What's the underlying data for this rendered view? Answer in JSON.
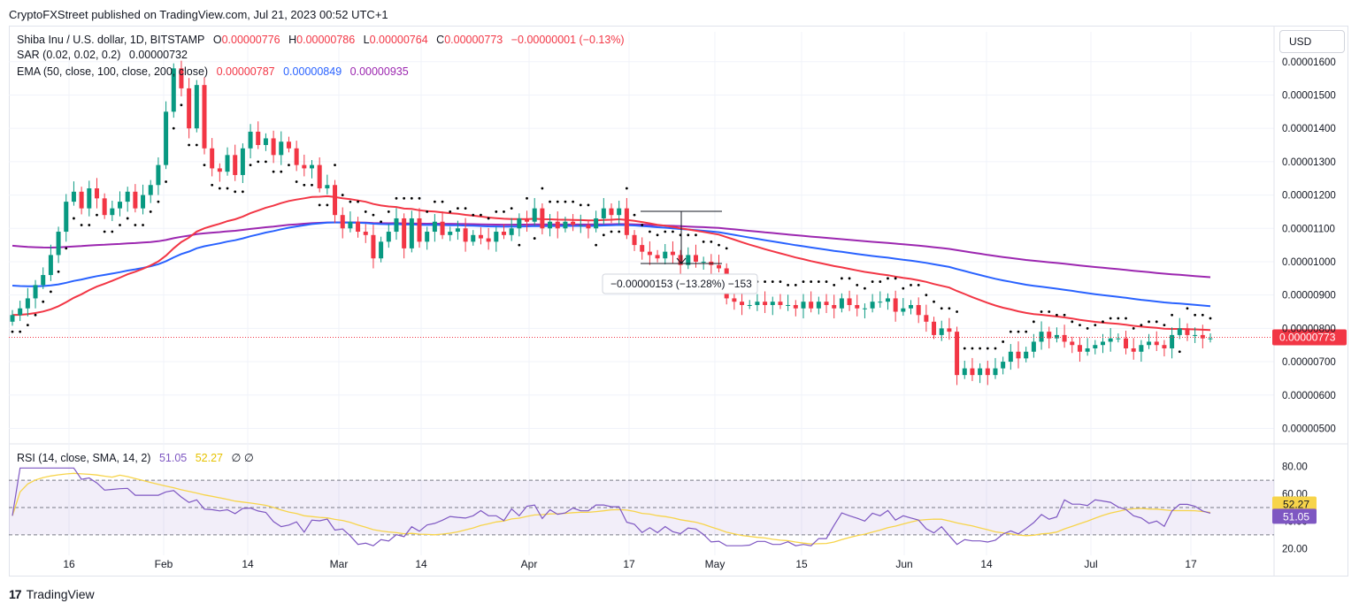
{
  "header": {
    "publisher": "CryptoFXStreet published on TradingView.com, Jul 21, 2023 00:52 UTC+1"
  },
  "currency_button": "USD",
  "legend": {
    "symbol": "Shiba Inu / U.S. dollar, 1D, BITSTAMP",
    "o_label": "O",
    "o": "0.00000776",
    "h_label": "H",
    "h": "0.00000786",
    "l_label": "L",
    "l": "0.00000764",
    "c_label": "C",
    "c": "0.00000773",
    "change": "−0.00000001 (−0.13%)",
    "sar_label": "SAR (0.02, 0.02, 0.2)",
    "sar_value": "0.00000732",
    "ema_label": "EMA (50, close, 100, close, 200, close)",
    "ema50": "0.00000787",
    "ema100": "0.00000849",
    "ema200": "0.00000935",
    "rsi_label": "RSI (14, close, SMA, 14, 2)",
    "rsi_value": "51.05",
    "rsi_sma": "52.27",
    "rsi_extra": "∅ ∅"
  },
  "price_tag": "0.00000773",
  "rsi_tags": {
    "sma": "52.27",
    "rsi": "51.05"
  },
  "measure_label": "−0.00000153 (−13.28%) −153",
  "footer": {
    "brand": "TradingView",
    "logo": "17"
  },
  "colors": {
    "up": "#089981",
    "down": "#f23645",
    "ema50": "#f23645",
    "ema100": "#2962ff",
    "ema200": "#9c27b0",
    "rsi": "#7e57c2",
    "rsi_sma": "#f7d44a"
  },
  "chart_data": {
    "type": "candlestick",
    "x_ticks": [
      "16",
      "Feb",
      "14",
      "Mar",
      "14",
      "Apr",
      "17",
      "May",
      "15",
      "Jun",
      "14",
      "Jul",
      "17"
    ],
    "y_ticks": [
      "0.00001600",
      "0.00001500",
      "0.00001400",
      "0.00001300",
      "0.00001200",
      "0.00001100",
      "0.00001000",
      "0.00000900",
      "0.00000800",
      "0.00000700",
      "0.00000600",
      "0.00000500"
    ],
    "ylim": [
      4.8e-06,
      1.61e-05
    ],
    "rsi_ticks": [
      "80.00",
      "60.00",
      "40.00",
      "20.00"
    ],
    "rsi_ylim": [
      15,
      85
    ],
    "rsi_bands": [
      70,
      50,
      30
    ],
    "closes": [
      8.4,
      8.6,
      8.9,
      9.3,
      9.6,
      10.2,
      10.9,
      11.8,
      12.1,
      11.6,
      12.2,
      11.9,
      11.4,
      11.6,
      11.8,
      12.1,
      11.6,
      12.0,
      12.3,
      12.9,
      14.5,
      15.8,
      15.2,
      14.0,
      15.3,
      13.4,
      12.8,
      12.7,
      13.2,
      12.6,
      13.4,
      13.9,
      13.5,
      13.7,
      13.2,
      13.6,
      13.4,
      12.9,
      12.8,
      12.9,
      12.2,
      12.3,
      11.4,
      11.0,
      11.2,
      10.9,
      10.8,
      10.1,
      10.6,
      10.9,
      11.3,
      10.4,
      11.3,
      10.6,
      10.9,
      11.2,
      10.8,
      10.9,
      11.0,
      10.6,
      10.8,
      10.7,
      10.6,
      10.9,
      10.8,
      11.0,
      11.3,
      11.2,
      11.6,
      11.0,
      11.2,
      11.0,
      11.2,
      11.1,
      11.1,
      11.0,
      11.3,
      11.6,
      11.4,
      11.6,
      10.8,
      10.5,
      10.3,
      10.2,
      10.1,
      10.3,
      10.2,
      9.9,
      10.2,
      10.0,
      10.0,
      9.9,
      9.8,
      8.9,
      8.8,
      8.7,
      8.7,
      8.8,
      8.7,
      8.8,
      8.7,
      8.7,
      8.6,
      8.8,
      8.6,
      8.8,
      8.7,
      8.6,
      8.9,
      8.7,
      8.6,
      8.6,
      8.8,
      8.8,
      8.9,
      8.5,
      8.6,
      8.7,
      8.4,
      8.2,
      7.8,
      8.0,
      7.9,
      6.6,
      6.8,
      6.6,
      6.8,
      6.6,
      6.8,
      7.0,
      7.3,
      7.1,
      7.3,
      7.6,
      7.9,
      7.7,
      7.8,
      7.6,
      7.5,
      7.3,
      7.4,
      7.5,
      7.6,
      7.7,
      7.7,
      7.4,
      7.3,
      7.5,
      7.6,
      7.5,
      7.4,
      7.8,
      8.0,
      7.8,
      7.8,
      7.7,
      7.7
    ]
  }
}
